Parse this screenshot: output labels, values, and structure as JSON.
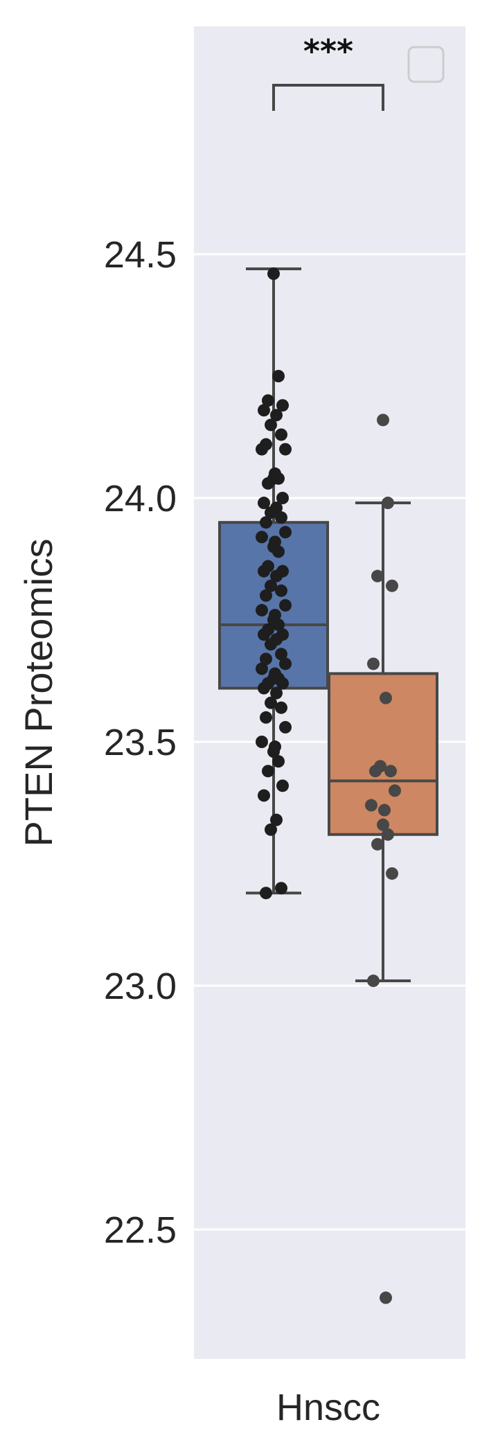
{
  "chart_data": {
    "type": "box",
    "title": "",
    "xlabel": "",
    "ylabel": "PTEN Proteomics",
    "categories": [
      "Hnscc"
    ],
    "ylim": [
      22.22,
      24.95
    ],
    "yticks": [
      "22.5",
      "23.0",
      "23.5",
      "24.0",
      "24.5"
    ],
    "grid": true,
    "legend": "top-right (empty)",
    "significance": "***",
    "colors": {
      "background": "#eaeaf2",
      "box_1": "#5875a9",
      "box_2": "#cd8762",
      "box_edge": "#474747",
      "points_1": "#1e1e1e",
      "points_2": "#474747"
    },
    "boxes": [
      {
        "q1": 23.61,
        "median": 23.74,
        "q3": 23.95,
        "whisker_low": 23.19,
        "whisker_high": 24.47,
        "points": [
          24.46,
          24.25,
          24.2,
          24.19,
          24.18,
          24.17,
          24.15,
          24.13,
          24.11,
          24.1,
          24.1,
          24.05,
          24.04,
          24.04,
          24.03,
          24.0,
          23.99,
          23.98,
          23.97,
          23.96,
          23.95,
          23.93,
          23.92,
          23.91,
          23.9,
          23.89,
          23.86,
          23.85,
          23.85,
          23.84,
          23.82,
          23.81,
          23.8,
          23.78,
          23.77,
          23.76,
          23.75,
          23.74,
          23.73,
          23.72,
          23.72,
          23.71,
          23.7,
          23.68,
          23.67,
          23.66,
          23.65,
          23.64,
          23.63,
          23.63,
          23.62,
          23.62,
          23.61,
          23.6,
          23.58,
          23.57,
          23.55,
          23.53,
          23.5,
          23.49,
          23.48,
          23.46,
          23.44,
          23.41,
          23.39,
          23.34,
          23.32,
          23.2,
          23.19
        ]
      },
      {
        "q1": 23.31,
        "median": 23.42,
        "q3": 23.64,
        "whisker_low": 23.01,
        "whisker_high": 23.99,
        "points": [
          24.16,
          23.99,
          23.84,
          23.82,
          23.66,
          23.59,
          23.45,
          23.44,
          23.44,
          23.4,
          23.37,
          23.36,
          23.33,
          23.31,
          23.29,
          23.23,
          23.01,
          22.36
        ]
      }
    ]
  }
}
